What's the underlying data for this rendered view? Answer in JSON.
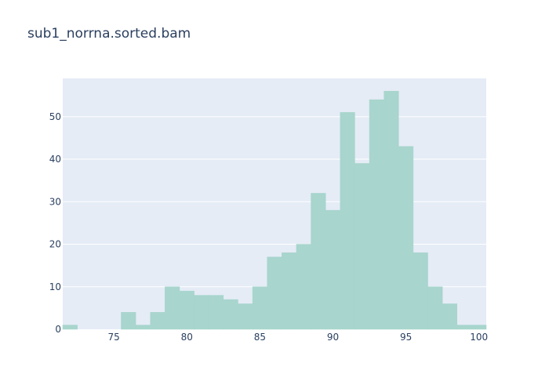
{
  "chart_data": {
    "type": "bar",
    "title": "sub1_norrna.sorted.bam",
    "xlabel": "",
    "ylabel": "",
    "bin_width": 1,
    "bins": [
      {
        "start": 71.5,
        "count": 1
      },
      {
        "start": 72.5,
        "count": 0
      },
      {
        "start": 73.5,
        "count": 0
      },
      {
        "start": 74.5,
        "count": 0
      },
      {
        "start": 75.5,
        "count": 4
      },
      {
        "start": 76.5,
        "count": 1
      },
      {
        "start": 77.5,
        "count": 4
      },
      {
        "start": 78.5,
        "count": 10
      },
      {
        "start": 79.5,
        "count": 9
      },
      {
        "start": 80.5,
        "count": 8
      },
      {
        "start": 81.5,
        "count": 8
      },
      {
        "start": 82.5,
        "count": 7
      },
      {
        "start": 83.5,
        "count": 6
      },
      {
        "start": 84.5,
        "count": 10
      },
      {
        "start": 85.5,
        "count": 17
      },
      {
        "start": 86.5,
        "count": 18
      },
      {
        "start": 87.5,
        "count": 20
      },
      {
        "start": 88.5,
        "count": 32
      },
      {
        "start": 89.5,
        "count": 28
      },
      {
        "start": 90.5,
        "count": 51
      },
      {
        "start": 91.5,
        "count": 39
      },
      {
        "start": 92.5,
        "count": 54
      },
      {
        "start": 93.5,
        "count": 56
      },
      {
        "start": 94.5,
        "count": 43
      },
      {
        "start": 95.5,
        "count": 18
      },
      {
        "start": 96.5,
        "count": 10
      },
      {
        "start": 97.5,
        "count": 6
      },
      {
        "start": 98.5,
        "count": 1
      },
      {
        "start": 99.5,
        "count": 1
      }
    ],
    "xlim": [
      71.5,
      100.5
    ],
    "ylim": [
      0,
      59
    ],
    "x_ticks": [
      75,
      80,
      85,
      90,
      95,
      100
    ],
    "y_ticks": [
      0,
      10,
      20,
      30,
      40,
      50
    ],
    "grid": true,
    "colors": {
      "bar": "#a8d5cd",
      "plot_bg": "#e5ecf6",
      "grid": "#ffffff",
      "text": "#2a3f5f"
    }
  }
}
